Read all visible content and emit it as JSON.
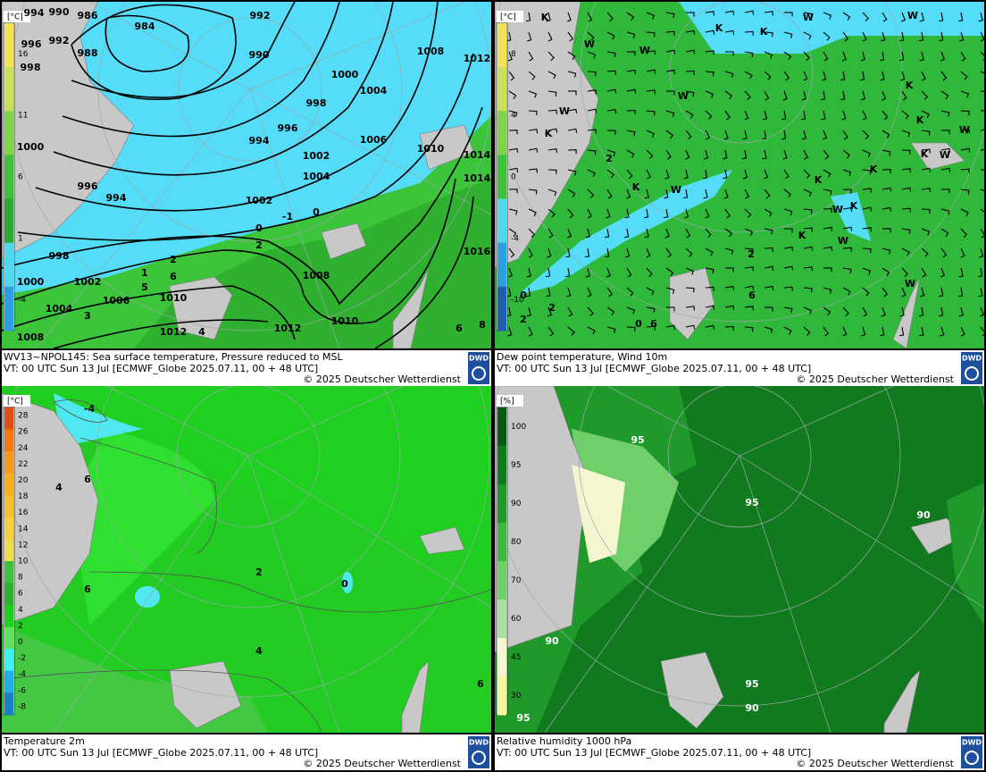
{
  "panels": [
    {
      "title": "WV13~NPOL145: Sea surface temperature,  Pressure reduced to MSL",
      "valid": "VT: 00 UTC Sun  13 Jul [ECMWF_Globe 2025.07.11, 00 + 48 UTC]",
      "copyright": "© 2025 Deutscher Wetterdienst",
      "logo": "DWD",
      "unit": "[°C]",
      "colorbar_ticks": [
        "16",
        "11",
        "6",
        "1",
        "-4"
      ],
      "colorbar_colors": [
        "#f2e25a",
        "#c8e05a",
        "#7fd34a",
        "#3fbf3a",
        "#2fa832",
        "#50d8f0",
        "#2aa0e0"
      ],
      "labels": [
        "994",
        "990",
        "986",
        "992",
        "984",
        "992",
        "996",
        "988",
        "998",
        "990",
        "1008",
        "1012",
        "1000",
        "1004",
        "998",
        "1000",
        "996",
        "994",
        "1006",
        "1010",
        "1014",
        "1002",
        "1004",
        "996",
        "994",
        "1014",
        "1002",
        "998",
        "1016",
        "1008",
        "1000",
        "1002",
        "1006",
        "1010",
        "1004",
        "1010",
        "1012",
        "1012",
        "1008",
        "0",
        "-1",
        "0",
        "2",
        "1",
        "5",
        "2",
        "6",
        "3",
        "4",
        "6",
        "8"
      ]
    },
    {
      "title": "Dew point temperature, Wind 10m",
      "valid": "VT: 00 UTC Sun  13 Jul [ECMWF_Globe 2025.07.11, 00 + 48 UTC]",
      "copyright": "© 2025 Deutscher Wetterdienst",
      "logo": "DWD",
      "unit": "[°C]",
      "colorbar_ticks": [
        "8",
        "4",
        "0",
        "-4",
        "-10"
      ],
      "colorbar_colors": [
        "#f2e25a",
        "#c8e05a",
        "#7fd34a",
        "#3fbf3a",
        "#50d8f0",
        "#2aa0e0",
        "#1f5fb0"
      ],
      "labels": [
        "K",
        "W",
        "W",
        "W",
        "W",
        "K",
        "K",
        "K",
        "W",
        "W",
        "K",
        "K",
        "W",
        "W",
        "K",
        "K",
        "K",
        "K",
        "W",
        "W",
        "K",
        "K",
        "W",
        "W",
        "2",
        "2",
        "0",
        "2",
        "0",
        "6",
        "6",
        "2"
      ]
    },
    {
      "title": "Temperature 2m",
      "valid": "VT: 00 UTC Sun  13 Jul [ECMWF_Globe 2025.07.11, 00 + 48 UTC]",
      "copyright": "© 2025 Deutscher Wetterdienst",
      "logo": "DWD",
      "unit": "[°C]",
      "colorbar_ticks": [
        "28",
        "26",
        "24",
        "22",
        "20",
        "18",
        "16",
        "14",
        "12",
        "10",
        "8",
        "6",
        "4",
        "2",
        "0",
        "-2",
        "-4",
        "-6",
        "-8"
      ],
      "colorbar_colors": [
        "#e05010",
        "#f07a10",
        "#f59a20",
        "#f5b020",
        "#f5c030",
        "#f5cf40",
        "#f0dc50",
        "#40c040",
        "#30b030",
        "#20d020",
        "#60e060",
        "#40f0f0",
        "#20b0e0",
        "#1880c0"
      ],
      "labels": [
        "-4",
        "6",
        "4",
        "6",
        "2",
        "0",
        "4",
        "6"
      ]
    },
    {
      "title": "Relative humidity 1000 hPa",
      "valid": "VT: 00 UTC Sun  13 Jul [ECMWF_Globe 2025.07.11, 00 + 48 UTC]",
      "copyright": "© 2025 Deutscher Wetterdienst",
      "logo": "DWD",
      "unit": "[%]",
      "colorbar_ticks": [
        "100",
        "95",
        "90",
        "80",
        "70",
        "60",
        "45",
        "30"
      ],
      "colorbar_colors": [
        "#0a5a14",
        "#127a1e",
        "#1f9a2a",
        "#3fb840",
        "#6fd06a",
        "#a8e0a0",
        "#f5f5d0",
        "#f5f5a0"
      ],
      "labels": [
        "95",
        "95",
        "90",
        "90",
        "95",
        "90",
        "95"
      ]
    }
  ]
}
